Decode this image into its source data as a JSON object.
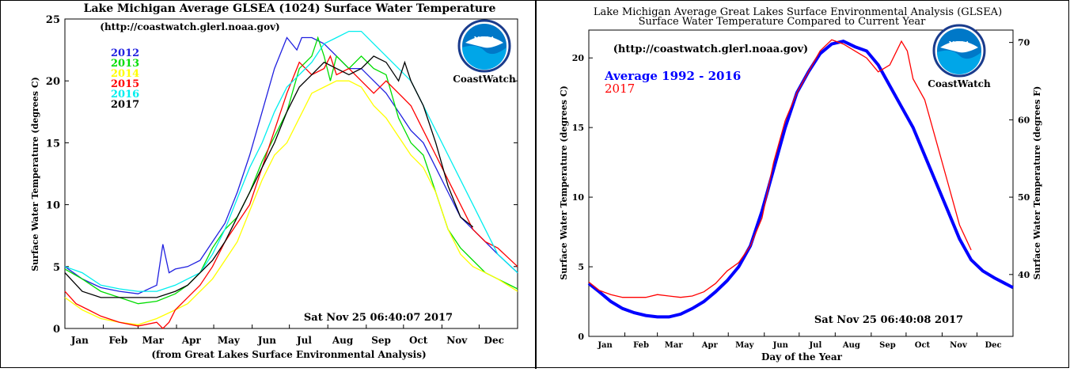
{
  "logo": {
    "agency": "NOAA",
    "label": "CoastWatch"
  },
  "chart_data": [
    {
      "type": "line",
      "title": "Lake Michigan Average GLSEA (1024) Surface Water Temperature",
      "subtitle": "(http://coastwatch.glerl.noaa.gov)",
      "xlabel": "(from Great Lakes Surface Environmental Analysis)",
      "ylabel": "Surface Water Temperature (degrees C)",
      "timestamp": "Sat Nov 25 06:40:07 2017",
      "months": [
        "Jan",
        "Feb",
        "Mar",
        "Apr",
        "May",
        "Jun",
        "Jul",
        "Aug",
        "Sep",
        "Oct",
        "Nov",
        "Dec"
      ],
      "yticks": [
        "0",
        "5",
        "10",
        "15",
        "20",
        "25"
      ],
      "xlim": [
        1,
        366
      ],
      "ylim": [
        0,
        25
      ],
      "legend_position": "top-left",
      "series": [
        {
          "name": "2012",
          "color": "#2020e0",
          "x": [
            1,
            15,
            30,
            45,
            60,
            75,
            80,
            85,
            90,
            100,
            110,
            120,
            130,
            140,
            150,
            160,
            170,
            180,
            188,
            192,
            200,
            210,
            220,
            230,
            240,
            250,
            260,
            270,
            280,
            290,
            300,
            310,
            320,
            330,
            340,
            350,
            366
          ],
          "y": [
            5,
            4,
            3.3,
            3,
            2.8,
            3.5,
            6.8,
            4.5,
            4.8,
            5,
            5.5,
            7,
            8.5,
            11,
            14,
            17.5,
            21,
            23.5,
            22.5,
            23.5,
            23.5,
            23,
            22,
            21,
            21,
            20,
            19,
            17.5,
            16,
            15,
            13,
            11,
            9,
            8,
            7,
            6,
            4.5
          ]
        },
        {
          "name": "2013",
          "color": "#00dd00",
          "x": [
            1,
            15,
            30,
            45,
            60,
            75,
            90,
            100,
            110,
            120,
            130,
            140,
            150,
            160,
            170,
            180,
            190,
            200,
            205,
            210,
            215,
            220,
            230,
            240,
            250,
            260,
            270,
            280,
            290,
            300,
            310,
            320,
            330,
            340,
            350,
            366
          ],
          "y": [
            4.8,
            4,
            3,
            2.5,
            2,
            2.2,
            2.8,
            3.5,
            4.5,
            6.5,
            8,
            9,
            11,
            13.5,
            15.5,
            17.5,
            21,
            22,
            23.5,
            22,
            20,
            22,
            21,
            22,
            21,
            20.5,
            17,
            15,
            14,
            11,
            8,
            6.5,
            5.5,
            4.5,
            4,
            3.2
          ]
        },
        {
          "name": "2014",
          "color": "#ffff00",
          "x": [
            1,
            15,
            30,
            45,
            60,
            75,
            90,
            100,
            110,
            120,
            130,
            140,
            150,
            160,
            170,
            180,
            190,
            200,
            210,
            220,
            230,
            240,
            250,
            260,
            270,
            280,
            290,
            300,
            310,
            320,
            330,
            340,
            350,
            366
          ],
          "y": [
            2.5,
            1.5,
            0.8,
            0.5,
            0.3,
            0.8,
            1.5,
            2,
            3,
            4,
            5.5,
            7,
            9.5,
            12,
            14,
            15,
            17,
            19,
            19.5,
            20,
            20,
            19.5,
            18,
            17,
            15.5,
            14,
            13,
            11,
            8,
            6,
            5,
            4.5,
            4,
            3
          ]
        },
        {
          "name": "2015",
          "color": "#ff0000",
          "x": [
            1,
            10,
            20,
            30,
            45,
            60,
            75,
            80,
            85,
            90,
            100,
            110,
            120,
            130,
            140,
            150,
            160,
            170,
            180,
            190,
            200,
            210,
            215,
            220,
            230,
            240,
            250,
            260,
            270,
            280,
            290,
            300,
            310,
            320,
            330,
            340,
            350,
            366
          ],
          "y": [
            3,
            2,
            1.5,
            1,
            0.5,
            0.2,
            0.5,
            0,
            0.5,
            1.5,
            2.5,
            3.5,
            5,
            7,
            8.5,
            10,
            13,
            16,
            19,
            21.5,
            20.5,
            21,
            22,
            20.5,
            21,
            20,
            19,
            20,
            19,
            18,
            16,
            14,
            12,
            10,
            8,
            7,
            6.5,
            5
          ]
        },
        {
          "name": "2016",
          "color": "#00eeee",
          "x": [
            1,
            15,
            30,
            45,
            60,
            75,
            90,
            100,
            110,
            120,
            130,
            140,
            150,
            160,
            170,
            180,
            190,
            200,
            210,
            220,
            230,
            240,
            250,
            260,
            270,
            280,
            290,
            300,
            310,
            320,
            330,
            340,
            350,
            366
          ],
          "y": [
            5,
            4.5,
            3.5,
            3.2,
            3,
            3,
            3.5,
            4,
            4.5,
            6,
            8,
            10.5,
            13,
            15,
            17.5,
            19.5,
            20.5,
            21.5,
            23,
            23.5,
            24,
            24,
            23,
            22,
            21,
            20,
            18,
            16,
            14,
            12,
            10,
            8,
            6,
            4.5
          ]
        },
        {
          "name": "2017",
          "color": "#000000",
          "x": [
            1,
            15,
            30,
            45,
            60,
            75,
            90,
            100,
            110,
            120,
            130,
            140,
            150,
            160,
            170,
            180,
            190,
            200,
            210,
            220,
            230,
            240,
            250,
            260,
            270,
            275,
            280,
            290,
            300,
            310,
            320,
            330
          ],
          "y": [
            4.5,
            3,
            2.5,
            2.5,
            2.5,
            2.5,
            3,
            3.5,
            4.5,
            5.5,
            7,
            9,
            11,
            13,
            15,
            17.5,
            19.5,
            20.5,
            21.5,
            21,
            20.5,
            21,
            22,
            21.5,
            20,
            21.5,
            20,
            18,
            15,
            11.5,
            9,
            8.2
          ]
        }
      ]
    },
    {
      "type": "line",
      "title": "Lake Michigan Average Great Lakes Surface Environmental Analysis (GLSEA)",
      "subtitle": "Surface Water Temperature Compared to Current Year",
      "subtitle2": "(http://coastwatch.glerl.noaa.gov)",
      "xlabel": "Day of the Year",
      "ylabel": "Surface Water Temperature (degrees C)",
      "ylabel_right": "Surface Water Temperature (degrees F)",
      "timestamp": "Sat Nov 25 06:40:08 2017",
      "months": [
        "Jan",
        "Feb",
        "Mar",
        "Apr",
        "May",
        "Jun",
        "Jul",
        "Aug",
        "Sep",
        "Oct",
        "Nov",
        "Dec"
      ],
      "yticks": [
        "0",
        "5",
        "10",
        "15",
        "20"
      ],
      "yticks_right": [
        "40",
        "50",
        "60",
        "70"
      ],
      "xlim": [
        1,
        366
      ],
      "ylim": [
        0,
        22
      ],
      "legend_position": "top-left",
      "series": [
        {
          "name": "Average 1992 - 2016",
          "color": "#0000ff",
          "x": [
            1,
            10,
            20,
            30,
            40,
            50,
            60,
            70,
            80,
            90,
            100,
            110,
            120,
            130,
            140,
            150,
            160,
            170,
            180,
            190,
            200,
            210,
            220,
            225,
            230,
            240,
            250,
            260,
            270,
            280,
            290,
            300,
            310,
            320,
            330,
            340,
            350,
            366
          ],
          "y": [
            3.8,
            3.2,
            2.5,
            2,
            1.7,
            1.5,
            1.4,
            1.4,
            1.6,
            2,
            2.5,
            3.2,
            4,
            5,
            6.5,
            9,
            12,
            15,
            17.5,
            19,
            20.3,
            21,
            21.2,
            21,
            20.8,
            20.5,
            19.5,
            18,
            16.5,
            15,
            13,
            11,
            9,
            7,
            5.5,
            4.7,
            4.2,
            3.5
          ]
        },
        {
          "name": "2017",
          "color": "#ff0000",
          "x": [
            1,
            10,
            20,
            30,
            40,
            50,
            60,
            70,
            80,
            90,
            100,
            110,
            120,
            130,
            140,
            150,
            160,
            170,
            180,
            190,
            200,
            210,
            220,
            230,
            240,
            250,
            260,
            270,
            275,
            280,
            290,
            300,
            310,
            320,
            330
          ],
          "y": [
            3.9,
            3.3,
            3,
            2.8,
            2.8,
            2.8,
            3,
            2.9,
            2.8,
            2.9,
            3.2,
            3.8,
            4.7,
            5.3,
            6.5,
            8.5,
            12.5,
            15.5,
            17.5,
            19,
            20.5,
            21.3,
            21,
            20.5,
            20,
            19,
            19.5,
            21.2,
            20.5,
            18.5,
            17,
            14,
            11,
            8,
            6.2
          ]
        }
      ]
    }
  ]
}
